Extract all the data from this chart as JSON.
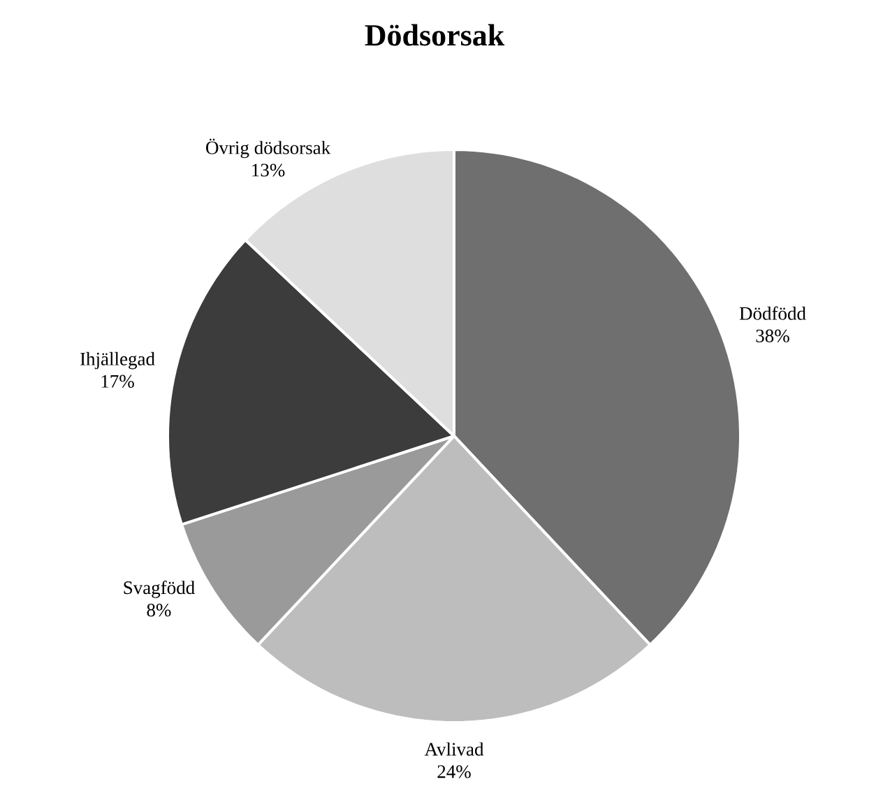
{
  "chart_data": {
    "type": "pie",
    "title": "Dödsorsak",
    "categories": [
      "Dödfödd",
      "Avlivad",
      "Svagfödd",
      "Ihjällegad",
      "Övrig dödsorsak"
    ],
    "values": [
      38,
      24,
      8,
      17,
      13
    ],
    "value_labels": [
      "38%",
      "24%",
      "8%",
      "17%",
      "13%"
    ],
    "colors": [
      "#6f6f6f",
      "#bdbdbd",
      "#9a9a9a",
      "#3c3c3c",
      "#dedede"
    ]
  }
}
